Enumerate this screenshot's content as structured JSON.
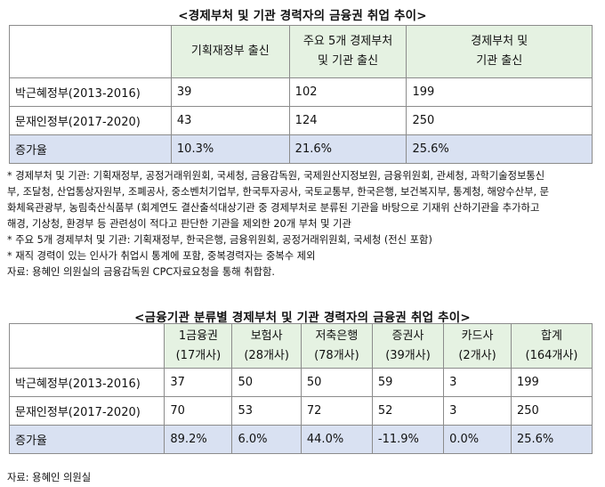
{
  "table1": {
    "title": "<경제부처 및 기관 경력자의 금융권 취업 추이>",
    "headers": [
      "",
      "기획재정부 출신",
      "주요 5개 경제부처\n및 기관 출신",
      "경제부처 및\n기관 출신"
    ],
    "rows": [
      [
        "박근혜정부(2013-2016)",
        "39",
        "102",
        "199"
      ],
      [
        "문재인정부(2017-2020)",
        "43",
        "124",
        "250"
      ],
      [
        "증가율",
        "10.3%",
        "21.6%",
        "25.6%"
      ]
    ]
  },
  "notes": [
    "* 경제부처 및 기관: 기획재정부, 공정거래위원회, 국세청, 금융감독원, 국제원산지정보원, 금융위원회, 관세청, 과학기술정보통신",
    "부, 조달청, 산업통상자원부, 조폐공사, 중소벤처기업부, 한국투자공사, 국토교통부, 한국은행, 보건복지부, 통계청, 해양수산부, 문",
    "화체육관광부, 농림축산식품부 (회계연도 결산출석대상기관 중 경제부처로 분류된 기관을 바탕으로 기재위 산하기관을 추가하고",
    "해경, 기상청, 환경부 등 관련성이 적다고 판단한 기관을 제외한 20개 부처 및 기관",
    "* 주요 5개 경제부처 및 기관: 기획재정부, 한국은행, 금융위원회, 공정거래위원회, 국세청 (전신 포함)",
    "* 재직 경력이 있는 인사가 취업시 통계에 포함, 중복경력자는 중복수 제외",
    "자료: 용혜인 의원실의 금융감독원 CPC자료요청을 통해 취합함."
  ],
  "table2": {
    "title": "<금융기관 분류별 경제부처 및 기관 경력자의 금융권 취업 추이>",
    "headers": [
      "",
      "1금융권\n(17개사)",
      "보험사\n(28개사)",
      "저축은행\n(78개사)",
      "증권사\n(39개사)",
      "카드사\n(2개사)",
      "합계\n(164개사)"
    ],
    "rows": [
      [
        "박근혜정부(2013-2016)",
        "37",
        "50",
        "50",
        "59",
        "3",
        "199"
      ],
      [
        "문재인정부(2017-2020)",
        "70",
        "53",
        "72",
        "52",
        "3",
        "250"
      ],
      [
        "증가율",
        "89.2%",
        "6.0%",
        "44.0%",
        "-11.9%",
        "0.0%",
        "25.6%"
      ]
    ]
  },
  "source2": "자료: 용혜인 의원실",
  "colors": {
    "header_bg": "#e5f2e2",
    "rate_bg": "#d9e1f2",
    "border": "#8c8c8c"
  }
}
